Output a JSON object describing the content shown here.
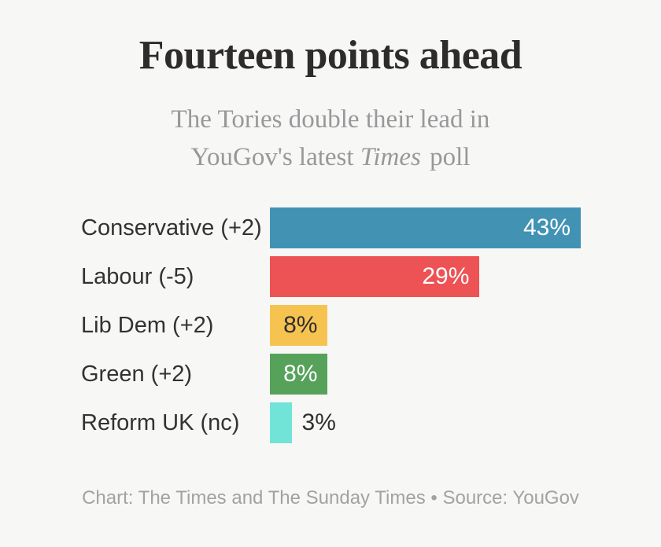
{
  "header": {
    "title": "Fourteen points ahead",
    "subtitle_line1": "The Tories double their lead in",
    "subtitle_line2_pre": "YouGov's latest ",
    "subtitle_line2_italic": "Times",
    "subtitle_line2_post": " poll"
  },
  "chart_data": {
    "type": "bar",
    "orientation": "horizontal",
    "title": "Fourteen points ahead",
    "subtitle": "The Tories double their lead in YouGov's latest Times poll",
    "categories": [
      "Conservative (+2)",
      "Labour (-5)",
      "Lib Dem (+2)",
      "Green (+2)",
      "Reform UK (nc)"
    ],
    "values": [
      43,
      29,
      8,
      8,
      3
    ],
    "value_labels": [
      "43%",
      "29%",
      "8%",
      "8%",
      "3%"
    ],
    "bar_colors": [
      "#4292b4",
      "#ed5254",
      "#f6c351",
      "#57a25b",
      "#71e3d7"
    ],
    "value_label_colors": [
      "#ffffff",
      "#ffffff",
      "#2f2f2f",
      "#ffffff",
      "#2f2f2f"
    ],
    "value_label_positions": [
      "inside",
      "inside",
      "inside",
      "inside",
      "outside"
    ],
    "xmax": 43,
    "xlabel": "",
    "ylabel": "",
    "grid": false,
    "legend": false,
    "background_color": "#f7f7f6"
  },
  "footer": {
    "text": "Chart: The Times and The Sunday Times • Source: YouGov"
  }
}
